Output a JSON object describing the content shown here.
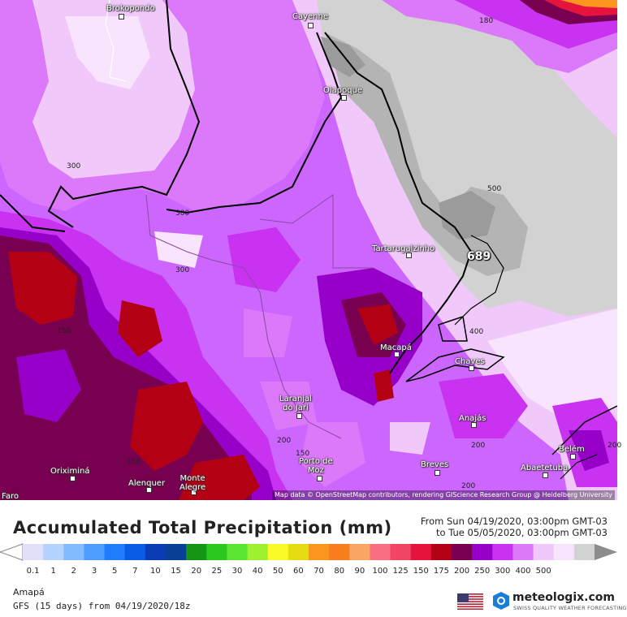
{
  "map": {
    "cities": [
      {
        "name": "Brokopondo"
      },
      {
        "name": "Cayenne"
      },
      {
        "name": "Oiapoque"
      },
      {
        "name": "Tartarugalzinho"
      },
      {
        "name": "Macapá"
      },
      {
        "name": "Chaves"
      },
      {
        "name": "Laranjal\ndo Jari"
      },
      {
        "name": "Anajás"
      },
      {
        "name": "Porto de\nMoz"
      },
      {
        "name": "Breves"
      },
      {
        "name": "Oriximiná"
      },
      {
        "name": "Alenquer"
      },
      {
        "name": "Monte\nAlegre"
      },
      {
        "name": "Abaetetuba"
      },
      {
        "name": "Belém"
      },
      {
        "name": "Faro"
      }
    ],
    "contour_labels": [
      "300",
      "300",
      "300",
      "150",
      "150",
      "150",
      "200",
      "200",
      "200",
      "400",
      "500",
      "180",
      "200"
    ],
    "max_value": "689",
    "attribution": "Map data © OpenStreetMap contributors, rendering GIScience Research Group @ Heidelberg University"
  },
  "legend": {
    "title": "Accumulated Total Precipitation (mm)",
    "period_from": "From Sun 04/19/2020, 03:00pm GMT-03",
    "period_to": "to Tue 05/05/2020, 03:00pm GMT-03",
    "ticks": [
      "0.1",
      "1",
      "2",
      "3",
      "5",
      "7",
      "10",
      "15",
      "20",
      "25",
      "30",
      "40",
      "50",
      "60",
      "70",
      "80",
      "90",
      "100",
      "125",
      "150",
      "175",
      "200",
      "250",
      "300",
      "400",
      "500"
    ],
    "colors": [
      "#e0e0f8",
      "#b4d4ff",
      "#82bcff",
      "#4d9cff",
      "#1f7cff",
      "#0a5ce6",
      "#0a3cb4",
      "#084096",
      "#149614",
      "#2dc81e",
      "#5ae632",
      "#a0f032",
      "#fafa28",
      "#e6dc14",
      "#fa961e",
      "#fa7d1e",
      "#faa564",
      "#fa6e82",
      "#f04664",
      "#e6143c",
      "#b40014",
      "#780050",
      "#9600c8",
      "#c832f0",
      "#dc78fa",
      "#f0c8fa",
      "#f8e4fc",
      "#d2d2d2"
    ],
    "region": "Amapá",
    "model": "GFS (15 days) from 04/19/2020/18z"
  },
  "brand": {
    "name": "meteologix.com",
    "tagline": "SWISS QUALITY WEATHER FORECASTING"
  }
}
